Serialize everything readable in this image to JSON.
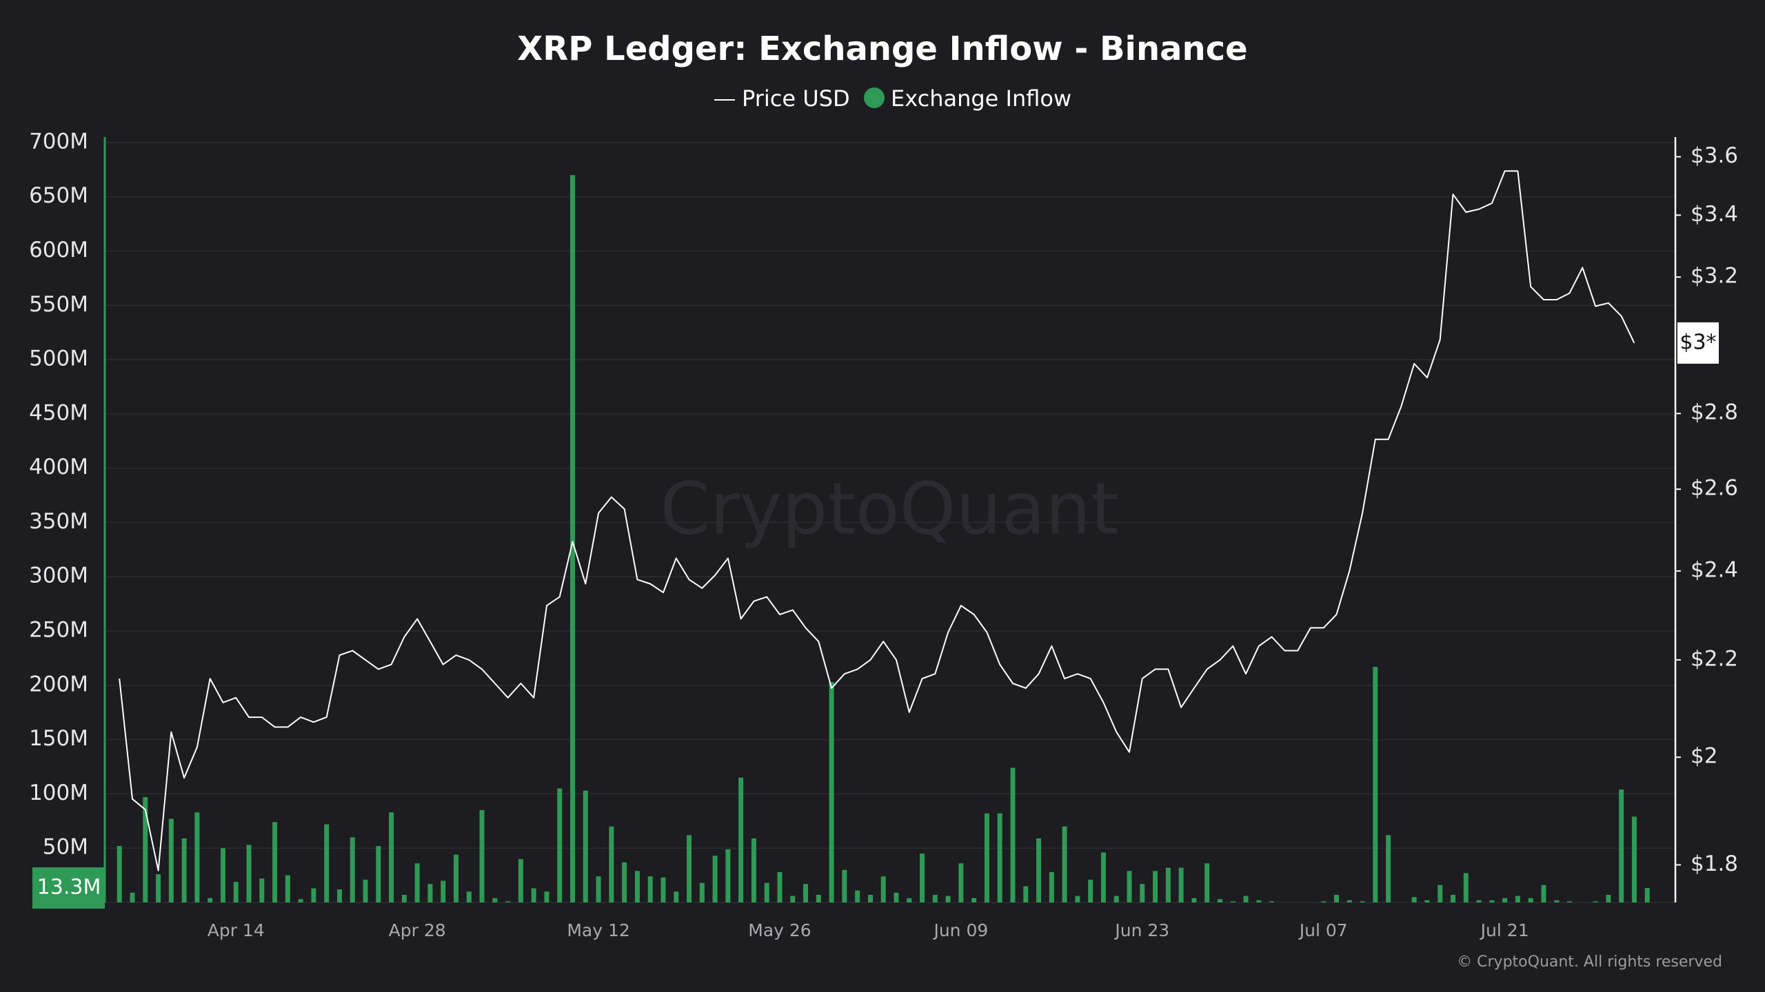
{
  "chart_data": {
    "type": "combo",
    "title": "XRP Ledger: Exchange Inflow - Binance",
    "categories": [
      null,
      null,
      null,
      null,
      null,
      null,
      null,
      null,
      null,
      "Apr 14",
      null,
      null,
      null,
      null,
      null,
      null,
      null,
      null,
      null,
      null,
      null,
      null,
      null,
      "Apr 28",
      null,
      null,
      null,
      null,
      null,
      null,
      null,
      null,
      null,
      null,
      null,
      null,
      null,
      "May 12",
      null,
      null,
      null,
      null,
      null,
      null,
      null,
      null,
      null,
      null,
      null,
      null,
      null,
      "May 26",
      null,
      null,
      null,
      null,
      null,
      null,
      null,
      null,
      null,
      null,
      null,
      null,
      null,
      "Jun 09",
      null,
      null,
      null,
      null,
      null,
      null,
      null,
      null,
      null,
      null,
      null,
      null,
      null,
      "Jun 23",
      null,
      null,
      null,
      null,
      null,
      null,
      null,
      null,
      null,
      null,
      null,
      null,
      null,
      "Jul 07",
      null,
      null,
      null,
      null,
      null,
      null,
      null,
      null,
      null,
      null,
      null,
      null,
      null,
      "Jul 21",
      null,
      null,
      null,
      null,
      null,
      null,
      null,
      null,
      null,
      null,
      null
    ],
    "series": [
      {
        "name": "Exchange Inflow",
        "type": "bar",
        "color": "#2f9a55",
        "axis": "y",
        "values": [
          52000000,
          9000000,
          97000000,
          26000000,
          77000000,
          59000000,
          83000000,
          4000000,
          50000000,
          19000000,
          53000000,
          22000000,
          74000000,
          25000000,
          3000000,
          13000000,
          72000000,
          12000000,
          60000000,
          21000000,
          52000000,
          83000000,
          7000000,
          36000000,
          17000000,
          20000000,
          44000000,
          10000000,
          85000000,
          4000000,
          1000000,
          40000000,
          13000000,
          10000000,
          105000000,
          670000000,
          103000000,
          24000000,
          70000000,
          37000000,
          29000000,
          24000000,
          23000000,
          10000000,
          62000000,
          18000000,
          43000000,
          49000000,
          115000000,
          59000000,
          18000000,
          28000000,
          6000000,
          17000000,
          7000000,
          203000000,
          30000000,
          11000000,
          7000000,
          24000000,
          9000000,
          4000000,
          45000000,
          7000000,
          6000000,
          36000000,
          4000000,
          82000000,
          82000000,
          124000000,
          15000000,
          59000000,
          28000000,
          70000000,
          6000000,
          21000000,
          46000000,
          6000000,
          29000000,
          17000000,
          29000000,
          32000000,
          32000000,
          4000000,
          36000000,
          3000000,
          1000000,
          6000000,
          2000000,
          1000000,
          0,
          0,
          0,
          1000000,
          7000000,
          2000000,
          1000000,
          217000000,
          62000000,
          0,
          5000000,
          2000000,
          16000000,
          7000000,
          27000000,
          2000000,
          2000000,
          4000000,
          6000000,
          4000000,
          16000000,
          2000000,
          1000000,
          0,
          1000000,
          7000000,
          104000000,
          79000000,
          13300000
        ]
      },
      {
        "name": "Price USD",
        "type": "line",
        "color": "#ffffff",
        "axis": "y2",
        "values": [
          2.16,
          1.92,
          1.9,
          1.79,
          2.05,
          1.96,
          2.02,
          2.16,
          2.11,
          2.12,
          2.08,
          2.08,
          2.06,
          2.06,
          2.08,
          2.07,
          2.08,
          2.21,
          2.22,
          2.2,
          2.18,
          2.19,
          2.25,
          2.29,
          2.24,
          2.19,
          2.21,
          2.2,
          2.18,
          2.15,
          2.12,
          2.15,
          2.12,
          2.32,
          2.34,
          2.47,
          2.37,
          2.54,
          2.58,
          2.55,
          2.38,
          2.37,
          2.35,
          2.43,
          2.38,
          2.36,
          2.39,
          2.43,
          2.29,
          2.33,
          2.34,
          2.3,
          2.31,
          2.27,
          2.24,
          2.14,
          2.17,
          2.18,
          2.2,
          2.24,
          2.2,
          2.09,
          2.16,
          2.17,
          2.26,
          2.32,
          2.3,
          2.26,
          2.19,
          2.15,
          2.14,
          2.17,
          2.23,
          2.16,
          2.17,
          2.16,
          2.11,
          2.05,
          2.01,
          2.16,
          2.18,
          2.18,
          2.1,
          2.14,
          2.18,
          2.2,
          2.23,
          2.17,
          2.23,
          2.25,
          2.22,
          2.22,
          2.27,
          2.27,
          2.3,
          2.4,
          2.54,
          2.73,
          2.73,
          2.82,
          2.94,
          2.9,
          3.01,
          3.47,
          3.41,
          3.42,
          3.44,
          3.55,
          3.55,
          3.17,
          3.13,
          3.13,
          3.15,
          3.23,
          3.11,
          3.12,
          3.08,
          3.0,
          null
        ]
      }
    ],
    "ylim": [
      0,
      705000000
    ],
    "yticks": [
      0,
      {
        "value": 50000000,
        "label": "50M"
      },
      {
        "value": 100000000,
        "label": "100M"
      },
      {
        "value": 150000000,
        "label": "150M"
      },
      {
        "value": 200000000,
        "label": "200M"
      },
      {
        "value": 250000000,
        "label": "250M"
      },
      {
        "value": 300000000,
        "label": "300M"
      },
      {
        "value": 350000000,
        "label": "350M"
      },
      {
        "value": 400000000,
        "label": "400M"
      },
      {
        "value": 450000000,
        "label": "450M"
      },
      {
        "value": 500000000,
        "label": "500M"
      },
      {
        "value": 550000000,
        "label": "550M"
      },
      {
        "value": 600000000,
        "label": "600M"
      },
      {
        "value": 650000000,
        "label": "650M"
      },
      {
        "value": 700000000,
        "label": "700M"
      }
    ],
    "y2lim": [
      1.735,
      3.67
    ],
    "y2_log_scale": true,
    "y2ticks": [
      {
        "value": 1.8,
        "label": "$1.8"
      },
      {
        "value": 2,
        "label": "$2"
      },
      {
        "value": 2.2,
        "label": "$2.2"
      },
      {
        "value": 2.4,
        "label": "$2.4"
      },
      {
        "value": 2.6,
        "label": "$2.6"
      },
      {
        "value": 2.8,
        "label": "$2.8"
      },
      {
        "value": 3.2,
        "label": "$3.2"
      },
      {
        "value": 3.4,
        "label": "$3.4"
      },
      {
        "value": 3.6,
        "label": "$3.6"
      }
    ],
    "grid": true,
    "inflow_marker": {
      "value": 13300000,
      "label": "13.3M"
    },
    "price_marker": {
      "value": 3,
      "label": "$3*"
    },
    "watermark": "CryptoQuant",
    "footer": "© CryptoQuant. All rights reserved"
  }
}
